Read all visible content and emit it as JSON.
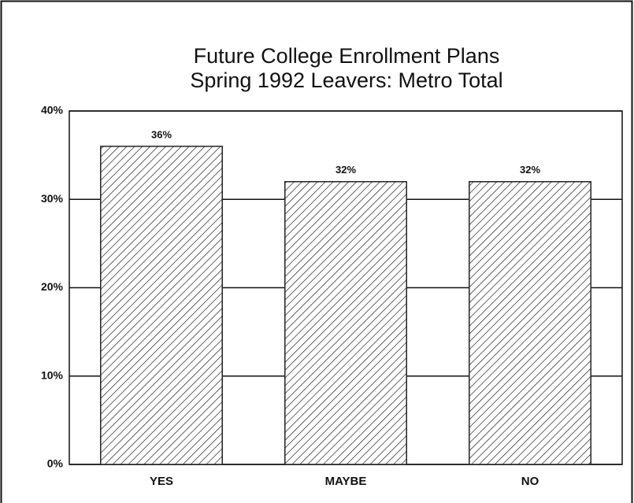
{
  "chart_data": {
    "type": "bar",
    "title": "Future College Enrollment Plans",
    "subtitle": "Spring 1992 Leavers:  Metro Total",
    "categories": [
      "YES",
      "MAYBE",
      "NO"
    ],
    "values": [
      36,
      32,
      32
    ],
    "value_labels": [
      "36%",
      "32%",
      "32%"
    ],
    "color": "#222222",
    "ylim": [
      0,
      40
    ],
    "yticks": [
      {
        "value": 0,
        "label": "0%"
      },
      {
        "value": 10,
        "label": "10%"
      },
      {
        "value": 20,
        "label": "20%"
      },
      {
        "value": 30,
        "label": "30%"
      },
      {
        "value": 40,
        "label": "40%"
      }
    ],
    "grid": true
  }
}
